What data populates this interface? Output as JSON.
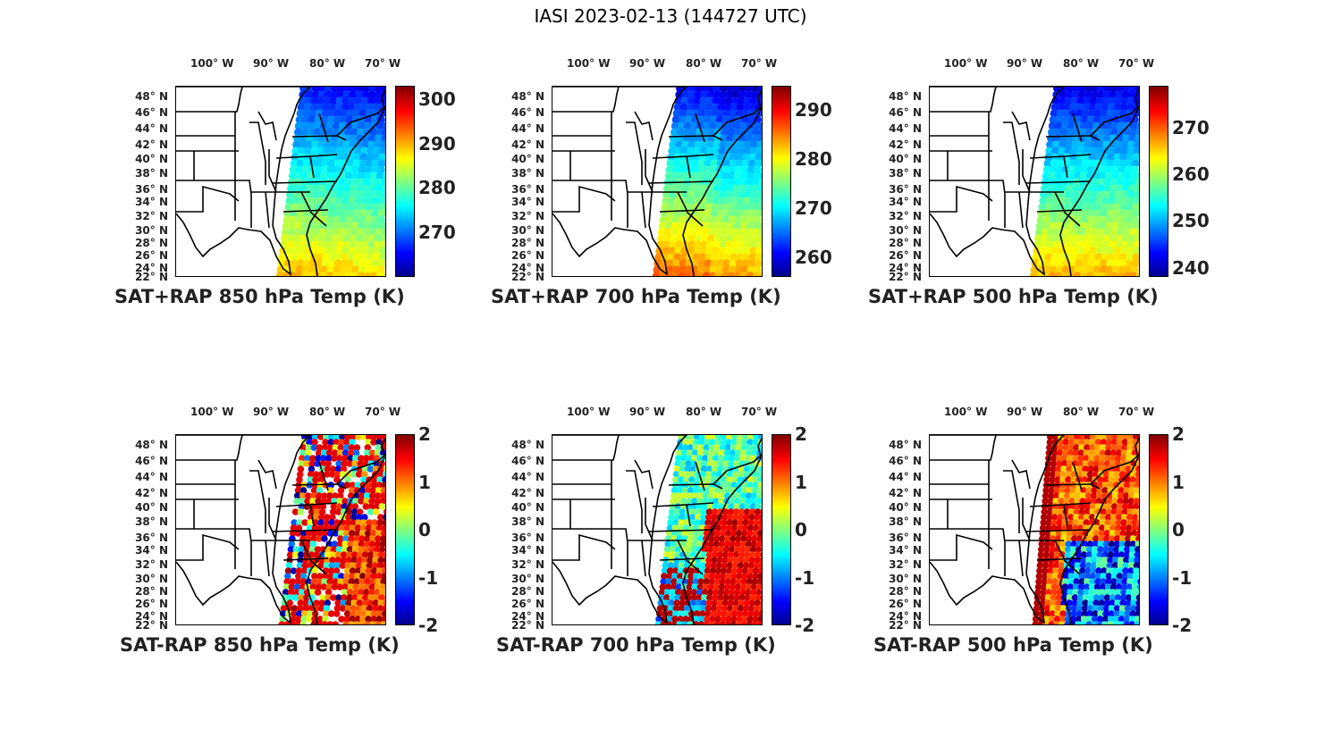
{
  "figure": {
    "title": "IASI 2023-02-13 (144727 UTC)",
    "lon_labels": [
      "100° W",
      "90° W",
      "80° W",
      "70° W"
    ],
    "lat_labels": [
      "48° N",
      "46° N",
      "44° N",
      "42° N",
      "40° N",
      "38° N",
      "36° N",
      "34° N",
      "32° N",
      "30° N",
      "28° N",
      "26° N",
      "24° N",
      "22° N"
    ]
  },
  "panels": [
    {
      "id": "p850",
      "title": "SAT+RAP 850 hPa Temp (K)",
      "kind": "total",
      "colorbar": {
        "min": 260,
        "max": 303,
        "ticks": [
          "300",
          "290",
          "280",
          "270"
        ]
      },
      "swath": {
        "description": "temperature field"
      }
    },
    {
      "id": "p700",
      "title": "SAT+RAP 700 hPa Temp (K)",
      "kind": "total",
      "colorbar": {
        "min": 256,
        "max": 295,
        "ticks": [
          "290",
          "280",
          "270",
          "260"
        ]
      },
      "swath": {
        "description": "temperature field"
      }
    },
    {
      "id": "p500",
      "title": "SAT+RAP 500 hPa Temp (K)",
      "kind": "total",
      "colorbar": {
        "min": 238,
        "max": 279,
        "ticks": [
          "270",
          "260",
          "250",
          "240"
        ]
      },
      "swath": {
        "description": "temperature field"
      }
    },
    {
      "id": "d850",
      "title": "SAT-RAP 850 hPa Temp (K)",
      "kind": "diff",
      "colorbar": {
        "min": -2,
        "max": 2,
        "ticks": [
          "2",
          "1",
          "0",
          "-1",
          "-2"
        ]
      },
      "swath": {
        "description": "difference field"
      }
    },
    {
      "id": "d700",
      "title": "SAT-RAP 700 hPa Temp (K)",
      "kind": "diff",
      "colorbar": {
        "min": -2,
        "max": 2,
        "ticks": [
          "2",
          "1",
          "0",
          "-1",
          "-2"
        ]
      },
      "swath": {
        "description": "difference field"
      }
    },
    {
      "id": "d500",
      "title": "SAT-RAP 500 hPa Temp (K)",
      "kind": "diff",
      "colorbar": {
        "min": -2,
        "max": 2,
        "ticks": [
          "2",
          "1",
          "0",
          "-1",
          "-2"
        ]
      },
      "swath": {
        "description": "difference field"
      }
    }
  ],
  "colors": {
    "jet_low": "#00008f",
    "jet_high": "#800000",
    "border": "#000000"
  }
}
